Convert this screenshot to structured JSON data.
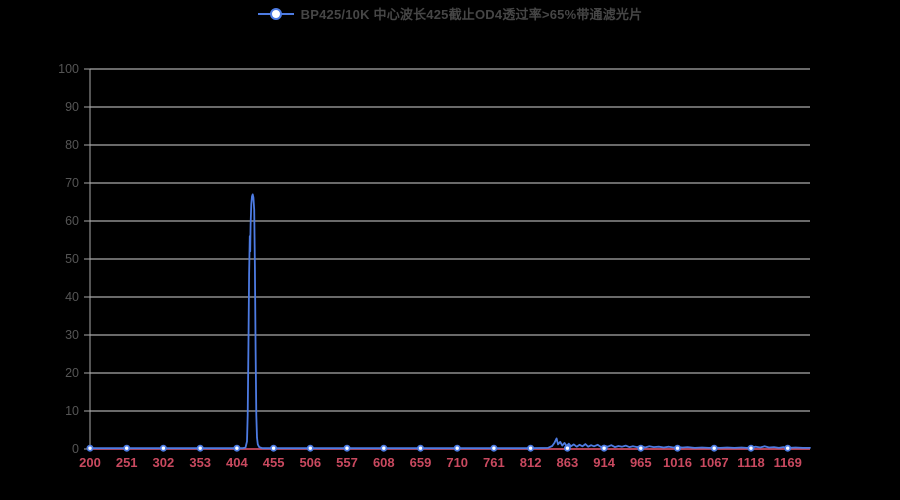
{
  "legend": {
    "label": "BP425/10K 中心波长425截止OD4透过率>65%带通滤光片"
  },
  "colors": {
    "background": "#000000",
    "series_blue": "#4d7be2",
    "marker_fill": "#ffffff",
    "axis_red": "#c9495f",
    "grid": "#d4d4d4",
    "y_axis_line": "#a8a8a8",
    "y_label": "#555555",
    "legend_text": "#464646"
  },
  "chart_data": {
    "type": "line",
    "title": "BP425/10K 中心波长425截止OD4透过率>65%带通滤光片",
    "xlabel": "",
    "ylabel": "",
    "legend_position": "top-center",
    "grid": "horizontal-only",
    "ylim": [
      0,
      100
    ],
    "y_ticks": [
      0,
      10,
      20,
      30,
      40,
      50,
      60,
      70,
      80,
      90,
      100
    ],
    "x_range_nm": [
      200,
      1200
    ],
    "x_tick_step_nm": 51,
    "x_tick_labels": [
      "200",
      "251",
      "302",
      "353",
      "404",
      "455",
      "506",
      "557",
      "608",
      "659",
      "710",
      "761",
      "812",
      "863",
      "914",
      "965",
      "1016",
      "1067",
      "1118",
      "1169"
    ],
    "series": [
      {
        "name": "BP425/10K 中心波长425截止OD4透过率>65%带通滤光片",
        "color": "#4d7be2",
        "marker": "circle-white-fill",
        "baseline_pct": 0.2,
        "peak": {
          "center_nm": 425,
          "max_transmission_pct": 67,
          "fwhm_nm": 10
        },
        "points": [
          [
            200,
            0.2
          ],
          [
            251,
            0.2
          ],
          [
            302,
            0.2
          ],
          [
            353,
            0.2
          ],
          [
            404,
            0.2
          ],
          [
            412,
            0.2
          ],
          [
            416,
            0.4
          ],
          [
            418,
            2
          ],
          [
            419,
            9
          ],
          [
            420,
            26
          ],
          [
            421,
            46
          ],
          [
            422,
            56
          ],
          [
            422.5,
            52
          ],
          [
            423,
            59
          ],
          [
            424,
            64.5
          ],
          [
            425,
            66.5
          ],
          [
            426,
            67
          ],
          [
            427,
            66.2
          ],
          [
            428,
            63
          ],
          [
            429,
            48
          ],
          [
            430,
            26
          ],
          [
            431,
            9
          ],
          [
            432,
            3
          ],
          [
            433,
            1.2
          ],
          [
            435,
            0.5
          ],
          [
            438,
            0.3
          ],
          [
            440,
            0.2
          ],
          [
            455,
            0.2
          ],
          [
            506,
            0.2
          ],
          [
            557,
            0.2
          ],
          [
            608,
            0.2
          ],
          [
            659,
            0.2
          ],
          [
            710,
            0.2
          ],
          [
            761,
            0.2
          ],
          [
            812,
            0.2
          ],
          [
            836,
            0.3
          ],
          [
            842,
            0.8
          ],
          [
            845,
            1.6
          ],
          [
            848,
            2.8
          ],
          [
            850,
            1.2
          ],
          [
            853,
            1.9
          ],
          [
            856,
            0.9
          ],
          [
            859,
            1.6
          ],
          [
            862,
            0.8
          ],
          [
            865,
            1.4
          ],
          [
            868,
            0.7
          ],
          [
            872,
            1.2
          ],
          [
            876,
            0.6
          ],
          [
            880,
            1.1
          ],
          [
            884,
            0.7
          ],
          [
            888,
            1.3
          ],
          [
            892,
            0.6
          ],
          [
            896,
            1.0
          ],
          [
            900,
            0.7
          ],
          [
            905,
            1.1
          ],
          [
            910,
            0.5
          ],
          [
            914,
            0.9
          ],
          [
            919,
            0.6
          ],
          [
            924,
            1.0
          ],
          [
            929,
            0.5
          ],
          [
            934,
            0.8
          ],
          [
            939,
            0.6
          ],
          [
            944,
            0.9
          ],
          [
            949,
            0.5
          ],
          [
            954,
            0.7
          ],
          [
            960,
            0.5
          ],
          [
            965,
            0.8
          ],
          [
            971,
            0.4
          ],
          [
            977,
            0.7
          ],
          [
            983,
            0.5
          ],
          [
            990,
            0.6
          ],
          [
            997,
            0.4
          ],
          [
            1004,
            0.6
          ],
          [
            1010,
            0.4
          ],
          [
            1016,
            0.5
          ],
          [
            1023,
            0.4
          ],
          [
            1030,
            0.5
          ],
          [
            1040,
            0.3
          ],
          [
            1050,
            0.4
          ],
          [
            1060,
            0.3
          ],
          [
            1067,
            0.4
          ],
          [
            1075,
            0.3
          ],
          [
            1085,
            0.4
          ],
          [
            1095,
            0.3
          ],
          [
            1105,
            0.4
          ],
          [
            1112,
            0.3
          ],
          [
            1118,
            0.4
          ],
          [
            1125,
            0.6
          ],
          [
            1131,
            0.4
          ],
          [
            1137,
            0.7
          ],
          [
            1143,
            0.4
          ],
          [
            1150,
            0.5
          ],
          [
            1157,
            0.3
          ],
          [
            1163,
            0.5
          ],
          [
            1169,
            0.3
          ],
          [
            1180,
            0.4
          ],
          [
            1190,
            0.3
          ],
          [
            1200,
            0.3
          ]
        ]
      }
    ]
  }
}
